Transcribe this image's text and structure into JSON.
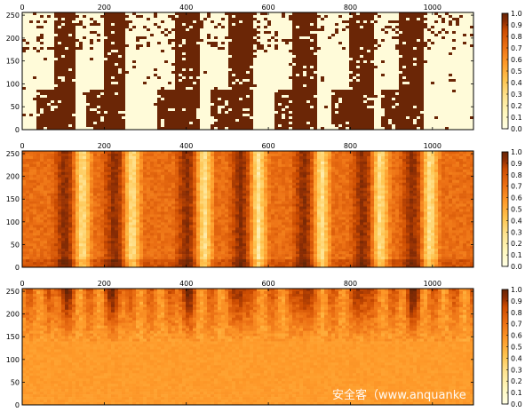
{
  "chart_data": [
    {
      "type": "heatmap",
      "panel": "top",
      "title": "",
      "xlabel": "",
      "ylabel": "",
      "xlim": [
        0,
        1100
      ],
      "ylim": [
        0,
        256
      ],
      "x_ticks": [
        0,
        200,
        400,
        600,
        800,
        1000
      ],
      "y_ticks": [
        0,
        50,
        100,
        150,
        200,
        250
      ],
      "colorbar_range": [
        0.0,
        1.0
      ],
      "colorbar_ticks": [
        "0.0",
        "0.1",
        "0.2",
        "0.3",
        "0.4",
        "0.5",
        "0.6",
        "0.7",
        "0.8",
        "0.9",
        "1.0"
      ],
      "colormap": [
        "#ffffe5",
        "#fee391",
        "#fec44f",
        "#fe9929",
        "#ec7014",
        "#cc4c02",
        "#8c2d04",
        "#662506"
      ],
      "description_style": "binary-like pattern, mostly 0 (light) with dark vertical stripes"
    },
    {
      "type": "heatmap",
      "panel": "middle",
      "title": "",
      "xlabel": "",
      "ylabel": "",
      "xlim": [
        0,
        1100
      ],
      "ylim": [
        0,
        256
      ],
      "x_ticks": [
        0,
        200,
        400,
        600,
        800,
        1000
      ],
      "y_ticks": [
        0,
        50,
        100,
        150,
        200,
        250
      ],
      "colorbar_range": [
        0.0,
        1.0
      ],
      "colorbar_ticks": [
        "0.0",
        "0.1",
        "0.2",
        "0.3",
        "0.4",
        "0.5",
        "0.6",
        "0.7",
        "0.8",
        "0.9",
        "1.0"
      ],
      "colormap": [
        "#ffffe5",
        "#fee391",
        "#fec44f",
        "#fe9929",
        "#ec7014",
        "#cc4c02",
        "#8c2d04",
        "#662506"
      ]
    },
    {
      "type": "heatmap",
      "panel": "bottom",
      "title": "",
      "xlabel": "",
      "ylabel": "",
      "xlim": [
        0,
        1100
      ],
      "ylim": [
        0,
        256
      ],
      "x_ticks": [
        0,
        200,
        400,
        600,
        800,
        1000
      ],
      "y_ticks": [
        0,
        50,
        100,
        150,
        200,
        250
      ],
      "colorbar_range": [
        0.0,
        1.0
      ],
      "colorbar_ticks": [
        "0.0",
        "0.1",
        "0.2",
        "0.3",
        "0.4",
        "0.5",
        "0.6",
        "0.7",
        "0.8",
        "0.9",
        "1.0"
      ],
      "colormap": [
        "#ffffe5",
        "#fee391",
        "#fec44f",
        "#fe9929",
        "#ec7014",
        "#cc4c02",
        "#8c2d04",
        "#662506"
      ]
    }
  ],
  "watermark": "安全客（www.anquanke"
}
